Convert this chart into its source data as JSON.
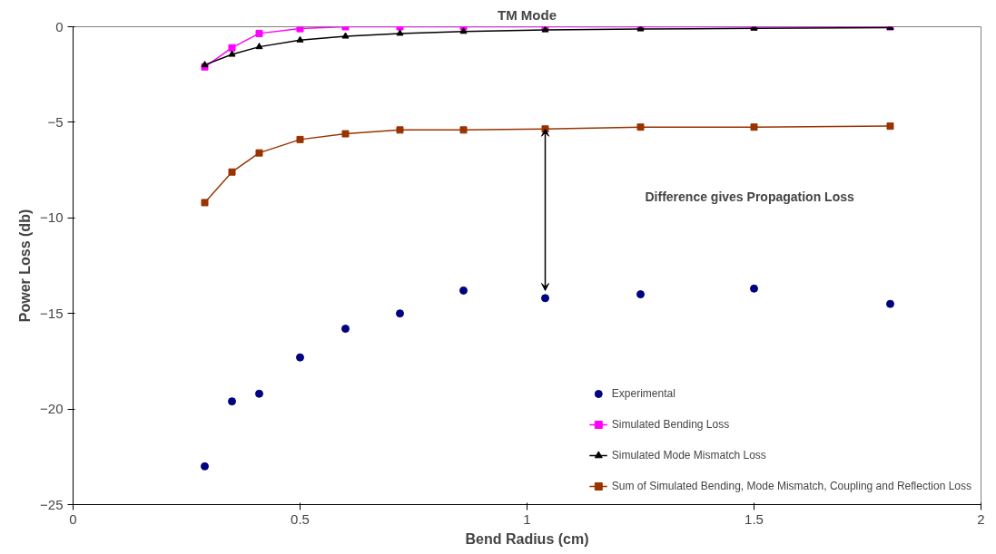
{
  "chart_data": {
    "type": "line",
    "title": "TM Mode",
    "xlabel": "Bend Radius (cm)",
    "ylabel": "Power Loss (db)",
    "x": [
      0.29,
      0.35,
      0.41,
      0.5,
      0.6,
      0.72,
      0.86,
      1.04,
      1.25,
      1.5,
      1.8
    ],
    "xlim": [
      0,
      2
    ],
    "xticks": [
      0,
      0.5,
      1,
      1.5,
      2
    ],
    "ylim": [
      -25,
      0
    ],
    "yticks": [
      -25,
      -20,
      -15,
      -10,
      -5,
      0
    ],
    "grid": false,
    "legend": "bottom right",
    "series": [
      {
        "name": "Experimental",
        "type": "scatter",
        "marker": "circle",
        "color": "#000080",
        "values": [
          -23.0,
          -19.6,
          -19.2,
          -17.3,
          -15.8,
          -15.0,
          -13.8,
          -14.2,
          -14.0,
          -13.7,
          -14.5
        ]
      },
      {
        "name": "Simulated Bending Loss",
        "marker": "square",
        "color": "#ff00ff",
        "values": [
          -2.1,
          -1.1,
          -0.35,
          -0.1,
          0,
          0,
          0,
          0,
          0,
          0,
          0
        ]
      },
      {
        "name": "Simulated Mode Mismatch Loss",
        "marker": "triangle",
        "color": "#000000",
        "values": [
          -2.0,
          -1.45,
          -1.05,
          -0.7,
          -0.5,
          -0.35,
          -0.25,
          -0.17,
          -0.12,
          -0.08,
          -0.05
        ]
      },
      {
        "name": "Sum of Simulated Bending, Mode Mismatch, Coupling and Reflection Loss",
        "marker": "square",
        "color": "#993300",
        "values": [
          -9.2,
          -7.6,
          -6.6,
          -5.9,
          -5.6,
          -5.4,
          -5.4,
          -5.35,
          -5.25,
          -5.25,
          -5.2
        ]
      }
    ],
    "annotations": [
      "Difference gives Propagation Loss"
    ]
  }
}
